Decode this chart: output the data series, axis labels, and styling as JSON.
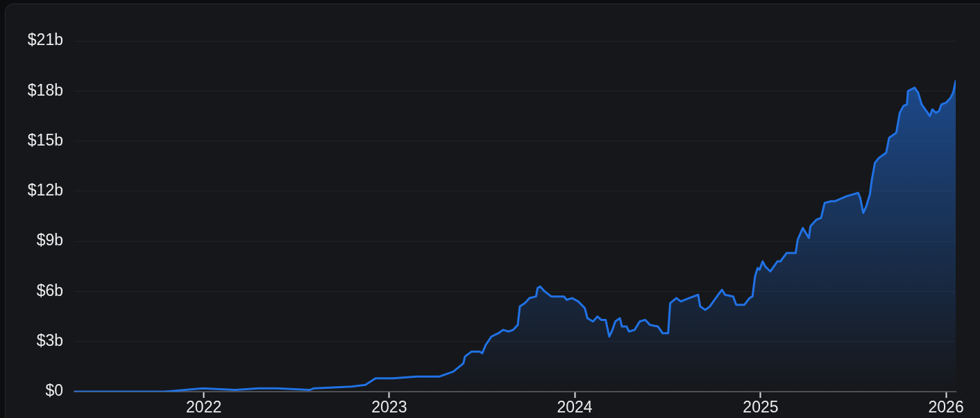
{
  "chart_data": {
    "type": "area",
    "x": [
      "2021-04-21",
      "2021-10-15",
      "2021-11-25",
      "2021-12-30",
      "2022-03-04",
      "2022-04-19",
      "2022-05-26",
      "2022-07-28",
      "2022-08-06",
      "2022-10-18",
      "2022-11-15",
      "2022-12-05",
      "2023-01-09",
      "2023-02-23",
      "2023-04-09",
      "2023-05-07",
      "2023-05-27",
      "2023-05-30",
      "2023-06-12",
      "2023-06-28",
      "2023-07-03",
      "2023-07-10",
      "2023-07-21",
      "2023-08-04",
      "2023-08-13",
      "2023-08-24",
      "2023-09-02",
      "2023-09-11",
      "2023-09-15",
      "2023-09-25",
      "2023-10-04",
      "2023-10-17",
      "2023-10-20",
      "2023-10-25",
      "2023-11-03",
      "2023-11-16",
      "2023-12-11",
      "2023-12-16",
      "2023-12-27",
      "2024-01-08",
      "2024-01-21",
      "2024-01-26",
      "2024-02-06",
      "2024-02-15",
      "2024-02-22",
      "2024-03-02",
      "2024-03-09",
      "2024-03-14",
      "2024-03-21",
      "2024-03-30",
      "2024-04-03",
      "2024-04-12",
      "2024-04-17",
      "2024-04-28",
      "2024-05-08",
      "2024-05-19",
      "2024-05-28",
      "2024-06-13",
      "2024-06-22",
      "2024-07-03",
      "2024-07-07",
      "2024-07-19",
      "2024-07-28",
      "2024-08-13",
      "2024-08-31",
      "2024-09-04",
      "2024-09-14",
      "2024-09-23",
      "2024-10-07",
      "2024-10-17",
      "2024-10-23",
      "2024-11-08",
      "2024-11-14",
      "2024-11-30",
      "2024-12-10",
      "2024-12-16",
      "2024-12-21",
      "2024-12-26",
      "2024-12-30",
      "2025-01-05",
      "2025-01-10",
      "2025-01-20",
      "2025-02-03",
      "2025-02-09",
      "2025-02-21",
      "2025-03-11",
      "2025-03-15",
      "2025-03-25",
      "2025-04-06",
      "2025-04-09",
      "2025-04-21",
      "2025-04-30",
      "2025-05-07",
      "2025-05-20",
      "2025-05-27",
      "2025-06-19",
      "2025-07-12",
      "2025-07-16",
      "2025-07-22",
      "2025-07-28",
      "2025-08-04",
      "2025-08-08",
      "2025-08-14",
      "2025-08-22",
      "2025-09-05",
      "2025-09-11",
      "2025-09-25",
      "2025-10-02",
      "2025-10-09",
      "2025-10-16",
      "2025-10-18",
      "2025-10-31",
      "2025-11-07",
      "2025-11-14",
      "2025-11-21",
      "2025-11-30",
      "2025-12-05",
      "2025-12-12",
      "2025-12-18",
      "2025-12-23",
      "2026-01-01",
      "2026-01-10",
      "2026-01-15",
      "2026-01-20"
    ],
    "series": [
      {
        "color": "#2172e5",
        "values": [
          0,
          0,
          0.1,
          0.2,
          0.1,
          0.2,
          0.2,
          0.1,
          0.2,
          0.3,
          0.4,
          0.8,
          0.8,
          0.9,
          0.9,
          1.2,
          1.7,
          2.1,
          2.4,
          2.4,
          2.3,
          2.8,
          3.3,
          3.5,
          3.7,
          3.6,
          3.7,
          4.0,
          5.1,
          5.3,
          5.6,
          5.7,
          6.2,
          6.3,
          6.0,
          5.7,
          5.7,
          5.5,
          5.6,
          5.4,
          5.0,
          4.4,
          4.2,
          4.5,
          4.3,
          4.3,
          3.3,
          3.6,
          4.2,
          4.4,
          3.9,
          3.9,
          3.6,
          3.7,
          4.2,
          4.3,
          4.0,
          3.9,
          3.5,
          3.5,
          5.3,
          5.6,
          5.4,
          5.6,
          5.8,
          5.1,
          4.9,
          5.1,
          5.7,
          6.1,
          5.8,
          5.7,
          5.2,
          5.2,
          5.6,
          5.7,
          6.9,
          7.4,
          7.3,
          7.8,
          7.5,
          7.2,
          7.8,
          7.8,
          8.3,
          8.3,
          9.1,
          9.8,
          9.2,
          9.9,
          10.3,
          10.4,
          11.3,
          11.4,
          11.4,
          11.7,
          11.9,
          11.6,
          10.7,
          11.1,
          11.8,
          12.7,
          13.7,
          14.0,
          14.3,
          15.2,
          15.5,
          16.7,
          17.1,
          17.2,
          18.0,
          18.2,
          17.9,
          17.2,
          16.9,
          16.5,
          16.9,
          16.7,
          16.8,
          17.2,
          17.3,
          17.6,
          17.9,
          18.6
        ]
      }
    ],
    "xlim": [
      "2021-04-21",
      "2026-01-20"
    ],
    "xticks": [
      "2022",
      "2023",
      "2024",
      "2025",
      "2026"
    ],
    "ylim": [
      0,
      21
    ],
    "yticks": [
      {
        "value": 0,
        "label": "$0"
      },
      {
        "value": 3,
        "label": "$3b"
      },
      {
        "value": 6,
        "label": "$6b"
      },
      {
        "value": 9,
        "label": "$9b"
      },
      {
        "value": 12,
        "label": "$12b"
      },
      {
        "value": 15,
        "label": "$15b"
      },
      {
        "value": 18,
        "label": "$18b"
      },
      {
        "value": 21,
        "label": "$21b"
      }
    ],
    "grid": "y"
  }
}
